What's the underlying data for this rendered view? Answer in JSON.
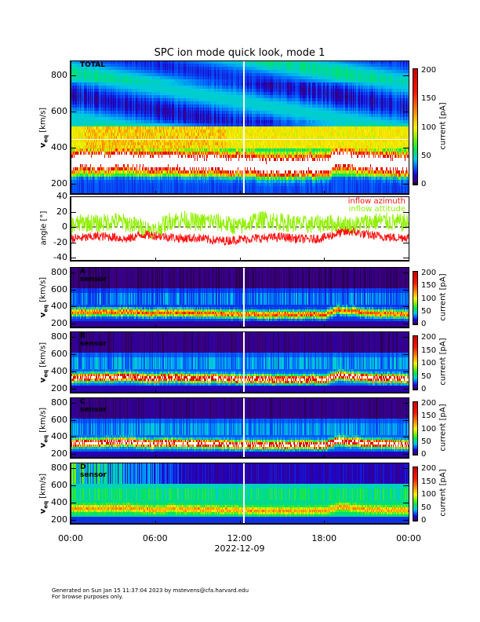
{
  "title": "SPC ion mode quick look, mode 1",
  "footer": {
    "line1": "Generated on Sun Jan 15 11:37:04 2023 by mstevens@cfa.harvard.edu",
    "line2": "For browse purposes only."
  },
  "colors": {
    "azimuth": "#ff1010",
    "altitude": "#90f000",
    "marker_line": "#ffffff"
  },
  "chart_data": [
    {
      "type": "heatmap",
      "name": "TOTAL",
      "panel_label": "TOTAL",
      "ylabel": "v",
      "ylabel_sub": "eq",
      "ylabel_unit": "[km/s]",
      "ylim": [
        140,
        883
      ],
      "yticks": [
        "200",
        "400",
        "600",
        "800"
      ],
      "colorbar": {
        "label": "current [pA]",
        "range": [
          0,
          200
        ],
        "ticks": [
          "0",
          "50",
          "100",
          "150",
          "200"
        ]
      },
      "peak_velocity_hourly": [
        320,
        330,
        325,
        330,
        335,
        320,
        315,
        325,
        320,
        315,
        318,
        312,
        310,
        305,
        300,
        300,
        300,
        305,
        300,
        340,
        330,
        320,
        315,
        310,
        305
      ],
      "background_current": 40,
      "peak_current": 260
    },
    {
      "type": "line",
      "name": "angle",
      "ylabel": "angle [°]",
      "ylim": [
        -45,
        40
      ],
      "yticks": [
        "-40",
        "-20",
        "0",
        "20",
        "40"
      ],
      "series": [
        {
          "name": "inflow azimuth",
          "hourly_mean": [
            -15,
            -14,
            -12,
            -13,
            -16,
            -10,
            -11,
            -13,
            -15,
            -14,
            -17,
            -18,
            -16,
            -15,
            -14,
            -13,
            -15,
            -16,
            -14,
            -8,
            -6,
            -10,
            -12,
            -14,
            -13
          ]
        },
        {
          "name": "inflow attitude",
          "hourly_mean": [
            2,
            6,
            4,
            8,
            5,
            0,
            -5,
            8,
            10,
            6,
            8,
            4,
            0,
            8,
            10,
            6,
            4,
            3,
            5,
            4,
            2,
            6,
            8,
            6,
            5
          ]
        }
      ]
    },
    {
      "type": "heatmap",
      "name": "A sensor",
      "panel_label": "A sensor",
      "ylabel": "v",
      "ylabel_sub": "eq",
      "ylabel_unit": "[km/s]",
      "ylim": [
        145,
        865
      ],
      "yticks": [
        "200",
        "400",
        "600",
        "800"
      ],
      "colorbar": {
        "label": "current [pA]",
        "range": [
          0,
          200
        ],
        "ticks": [
          "0",
          "50",
          "100",
          "150",
          "200"
        ]
      },
      "peak_velocity_hourly": [
        330,
        335,
        330,
        335,
        340,
        325,
        320,
        330,
        325,
        320,
        320,
        315,
        310,
        310,
        305,
        305,
        305,
        310,
        305,
        360,
        340,
        325,
        320,
        315,
        310
      ],
      "background_current": 8,
      "peak_current": 120
    },
    {
      "type": "heatmap",
      "name": "B sensor",
      "panel_label": "B sensor",
      "ylabel": "v",
      "ylabel_sub": "eq",
      "ylabel_unit": "[km/s]",
      "ylim": [
        145,
        865
      ],
      "yticks": [
        "200",
        "400",
        "600",
        "800"
      ],
      "colorbar": {
        "label": "current [pA]",
        "range": [
          0,
          200
        ],
        "ticks": [
          "0",
          "50",
          "100",
          "150",
          "200"
        ]
      },
      "peak_velocity_hourly": [
        325,
        330,
        330,
        335,
        340,
        325,
        320,
        330,
        325,
        320,
        320,
        315,
        310,
        310,
        305,
        305,
        305,
        310,
        305,
        360,
        340,
        325,
        320,
        315,
        310
      ],
      "background_current": 10,
      "peak_current": 190
    },
    {
      "type": "heatmap",
      "name": "C sensor",
      "panel_label": "C sensor",
      "ylabel": "v",
      "ylabel_sub": "eq",
      "ylabel_unit": "[km/s]",
      "ylim": [
        145,
        865
      ],
      "yticks": [
        "200",
        "400",
        "600",
        "800"
      ],
      "colorbar": {
        "label": "current [pA]",
        "range": [
          0,
          200
        ],
        "ticks": [
          "0",
          "50",
          "100",
          "150",
          "200"
        ]
      },
      "peak_velocity_hourly": [
        325,
        330,
        330,
        335,
        340,
        325,
        320,
        330,
        325,
        320,
        320,
        315,
        310,
        310,
        305,
        305,
        305,
        310,
        305,
        355,
        340,
        325,
        320,
        315,
        310
      ],
      "background_current": 10,
      "peak_current": 200
    },
    {
      "type": "heatmap",
      "name": "D sensor",
      "panel_label": "D sensor",
      "ylabel": "v",
      "ylabel_sub": "eq",
      "ylabel_unit": "[km/s]",
      "ylim": [
        145,
        865
      ],
      "yticks": [
        "200",
        "400",
        "600",
        "800"
      ],
      "colorbar": {
        "label": "current [pA]",
        "range": [
          0,
          200
        ],
        "ticks": [
          "0",
          "50",
          "100",
          "150",
          "200"
        ]
      },
      "peak_velocity_hourly": [
        330,
        335,
        330,
        335,
        340,
        325,
        320,
        330,
        325,
        320,
        320,
        315,
        310,
        310,
        305,
        305,
        305,
        310,
        305,
        350,
        340,
        325,
        320,
        315,
        310
      ],
      "background_current": 18,
      "peak_current": 70
    }
  ],
  "xaxis": {
    "ticks": [
      "00:00",
      "06:00",
      "12:00",
      "18:00",
      "00:00"
    ],
    "date": "2022-12-09",
    "range_hours": [
      0,
      24
    ],
    "marker_hour": 12.25
  }
}
